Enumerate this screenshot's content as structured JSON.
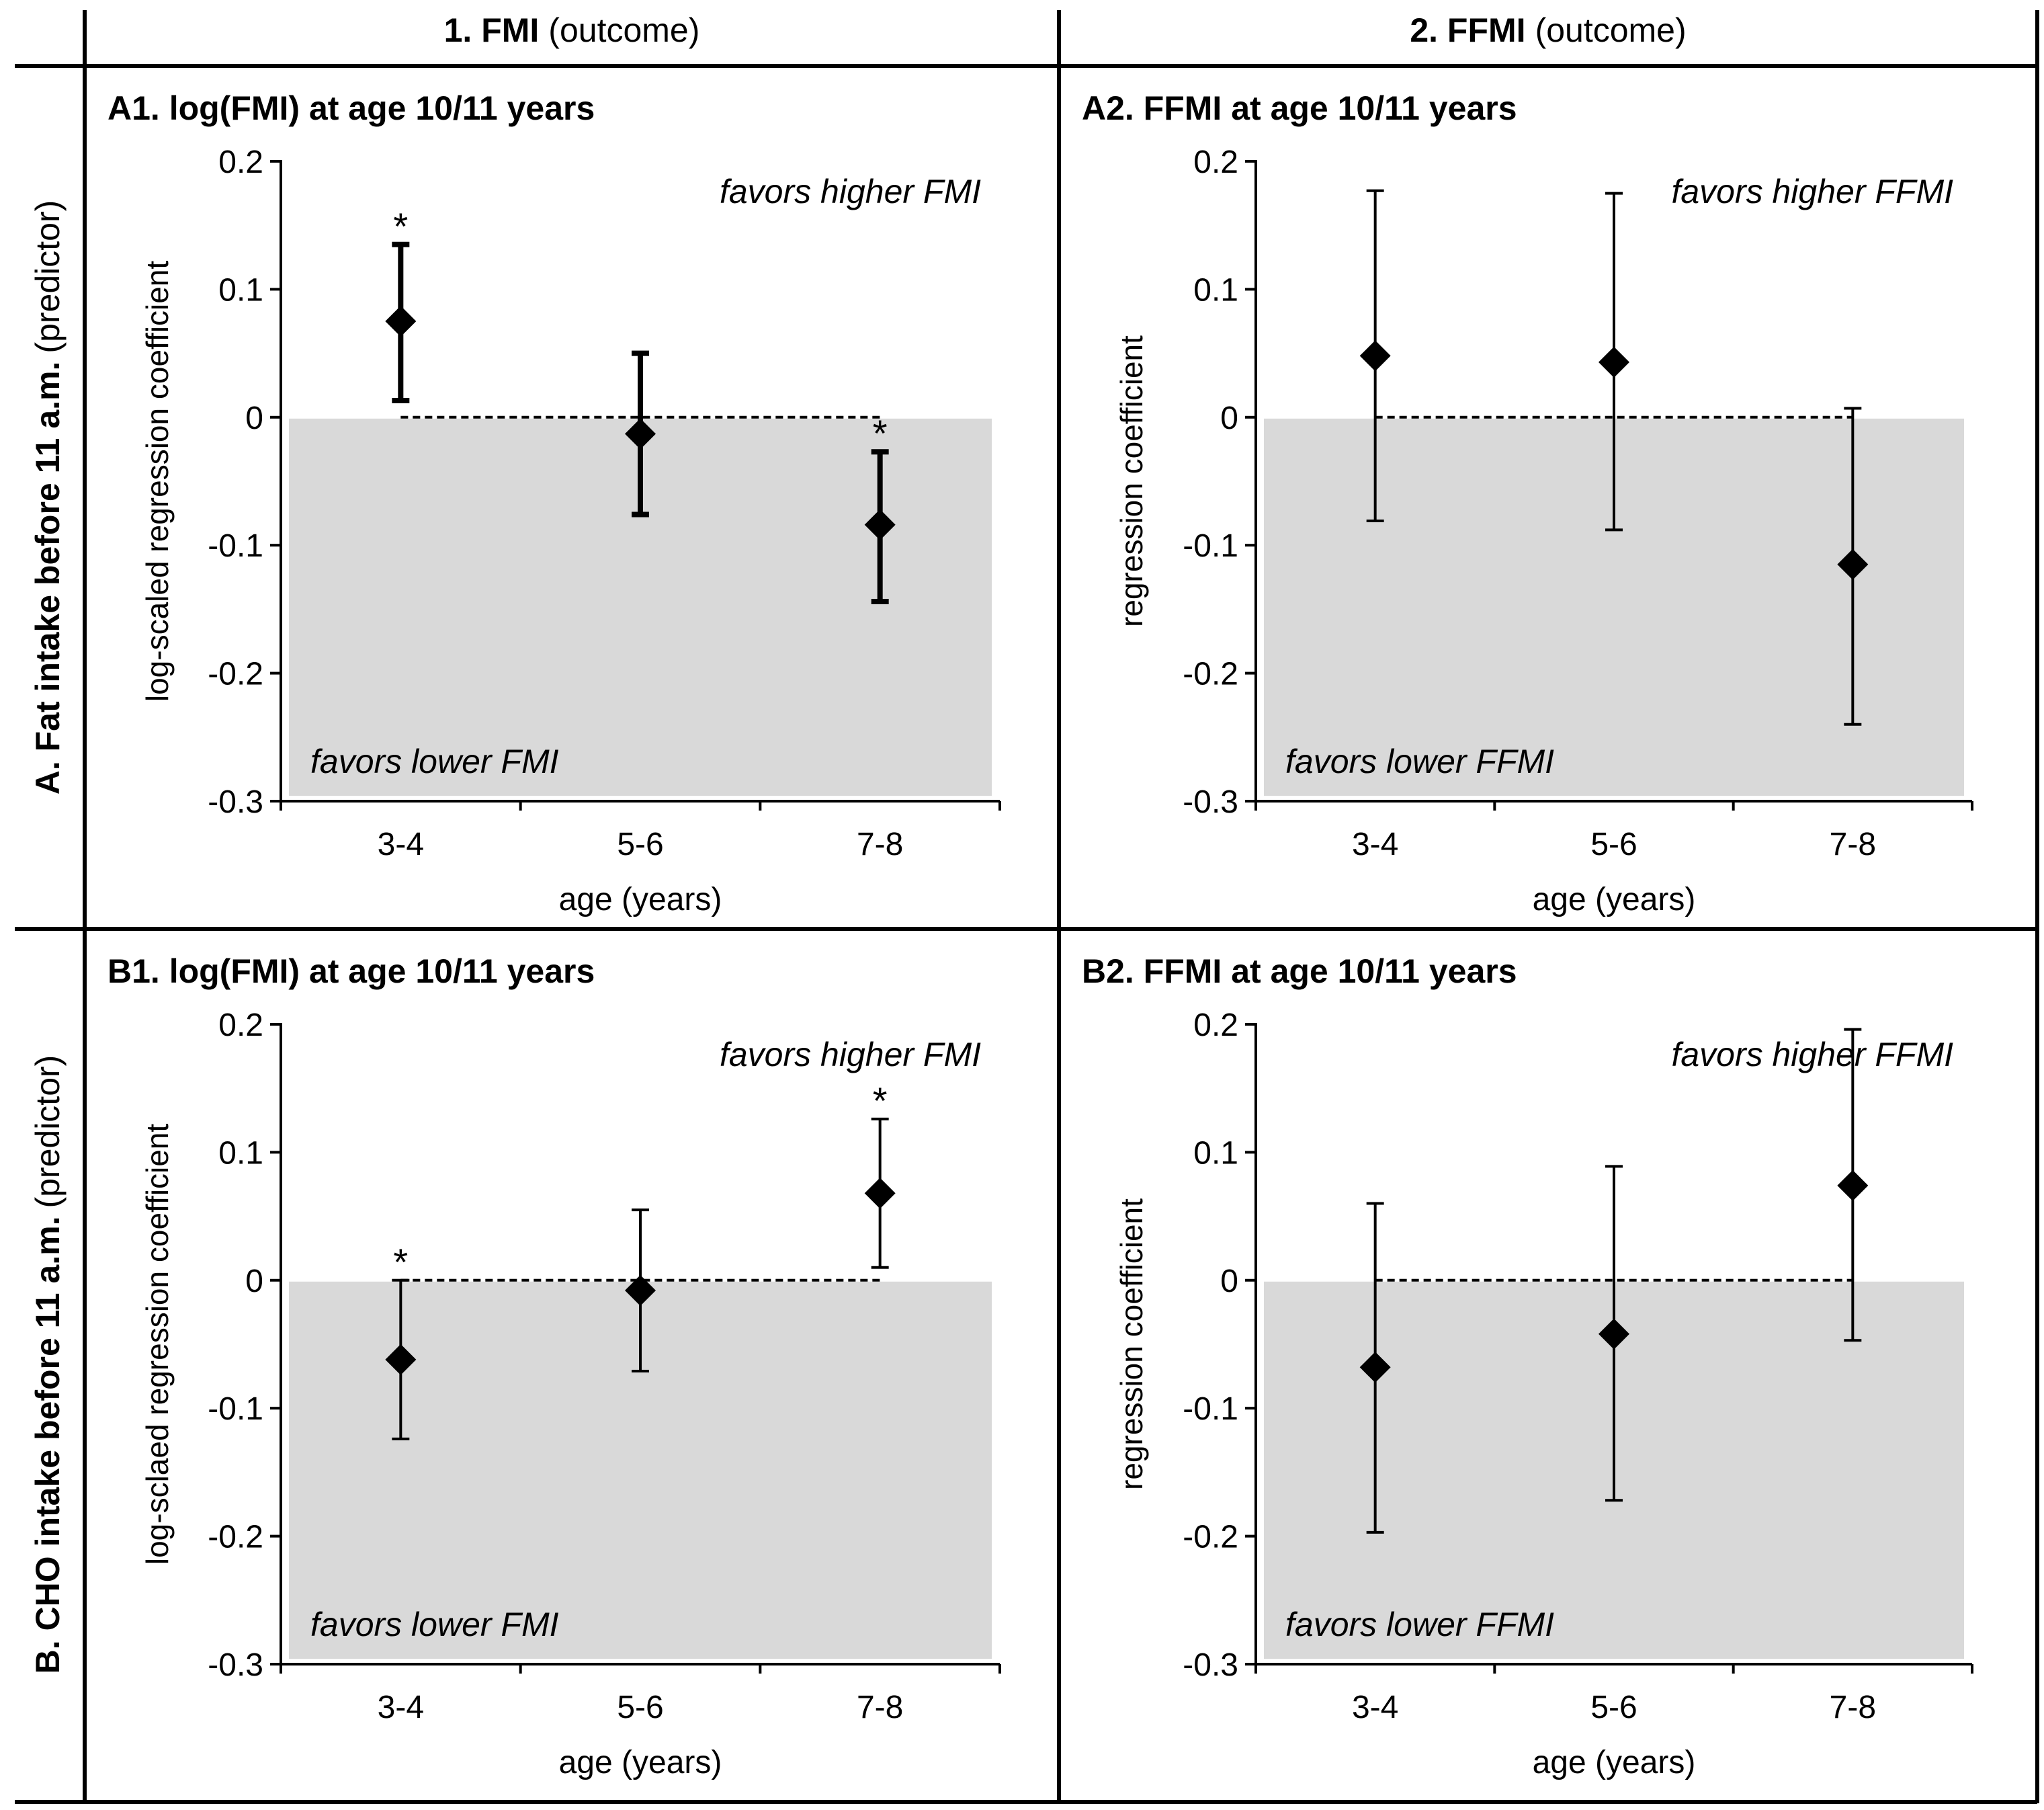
{
  "column_headers": [
    {
      "bold": "1. FMI",
      "normal": "(outcome)"
    },
    {
      "bold": "2. FFMI",
      "normal": "(outcome)"
    }
  ],
  "row_headers": [
    {
      "bold": "A. Fat intake before 11 a.m.",
      "normal": "(predictor)"
    },
    {
      "bold": "B. CHO intake before 11 a.m.",
      "normal": "(predictor)"
    }
  ],
  "chart_data": [
    {
      "id": "A1",
      "type": "scatter",
      "title": "A1. log(FMI) at age 10/11 years",
      "xlabel": "age (years)",
      "ylabel": "log-scaled regression coefficient",
      "categories": [
        "3-4",
        "5-6",
        "7-8"
      ],
      "yticks": [
        "0.2",
        "0.1",
        "0",
        "-0.1",
        "-0.2",
        "-0.3"
      ],
      "ylim": [
        -0.3,
        0.2
      ],
      "values": [
        0.075,
        -0.013,
        -0.084
      ],
      "ci_low": [
        0.013,
        -0.076,
        -0.144
      ],
      "ci_high": [
        0.135,
        0.05,
        -0.027
      ],
      "significant": [
        "*",
        "",
        "*"
      ],
      "reference_line": 0,
      "annotation_high": "favors higher FMI",
      "annotation_low": "favors lower FMI",
      "bold_errorbars": true
    },
    {
      "id": "A2",
      "type": "scatter",
      "title": "A2. FFMI at age 10/11 years",
      "xlabel": "age (years)",
      "ylabel": "regression coefficient",
      "categories": [
        "3-4",
        "5-6",
        "7-8"
      ],
      "yticks": [
        "0.2",
        "0.1",
        "0",
        "-0.1",
        "-0.2",
        "-0.3"
      ],
      "ylim": [
        -0.3,
        0.2
      ],
      "values": [
        0.048,
        0.043,
        -0.115
      ],
      "ci_low": [
        -0.081,
        -0.088,
        -0.24
      ],
      "ci_high": [
        0.177,
        0.175,
        0.007
      ],
      "significant": [
        "",
        "",
        ""
      ],
      "reference_line": 0,
      "annotation_high": "favors higher FFMI",
      "annotation_low": "favors lower FFMI",
      "bold_errorbars": false
    },
    {
      "id": "B1",
      "type": "scatter",
      "title": "B1. log(FMI) at age 10/11 years",
      "xlabel": "age (years)",
      "ylabel": "log-sclaed regression coefficient",
      "categories": [
        "3-4",
        "5-6",
        "7-8"
      ],
      "yticks": [
        "0.2",
        "0.1",
        "0",
        "-0.1",
        "-0.2",
        "-0.3"
      ],
      "ylim": [
        -0.3,
        0.2
      ],
      "values": [
        -0.062,
        -0.008,
        0.068
      ],
      "ci_low": [
        -0.124,
        -0.071,
        0.01
      ],
      "ci_high": [
        0.0,
        0.055,
        0.126
      ],
      "significant": [
        "*",
        "",
        "*"
      ],
      "reference_line": 0,
      "annotation_high": "favors higher FMI",
      "annotation_low": "favors lower FMI",
      "bold_errorbars": false
    },
    {
      "id": "B2",
      "type": "scatter",
      "title": "B2. FFMI at age 10/11 years",
      "xlabel": "age (years)",
      "ylabel": "regression coefficient",
      "categories": [
        "3-4",
        "5-6",
        "7-8"
      ],
      "yticks": [
        "0.2",
        "0.1",
        "0",
        "-0.1",
        "-0.2",
        "-0.3"
      ],
      "ylim": [
        -0.3,
        0.2
      ],
      "values": [
        -0.068,
        -0.042,
        0.074
      ],
      "ci_low": [
        -0.197,
        -0.172,
        -0.047
      ],
      "ci_high": [
        0.06,
        0.089,
        0.196
      ],
      "significant": [
        "",
        "",
        ""
      ],
      "reference_line": 0,
      "annotation_high": "favors higher FFMI",
      "annotation_low": "favors lower FFMI",
      "bold_errorbars": false
    }
  ],
  "colors": {
    "shade": "#d9d9d9",
    "ink": "#000000",
    "background": "#ffffff"
  }
}
